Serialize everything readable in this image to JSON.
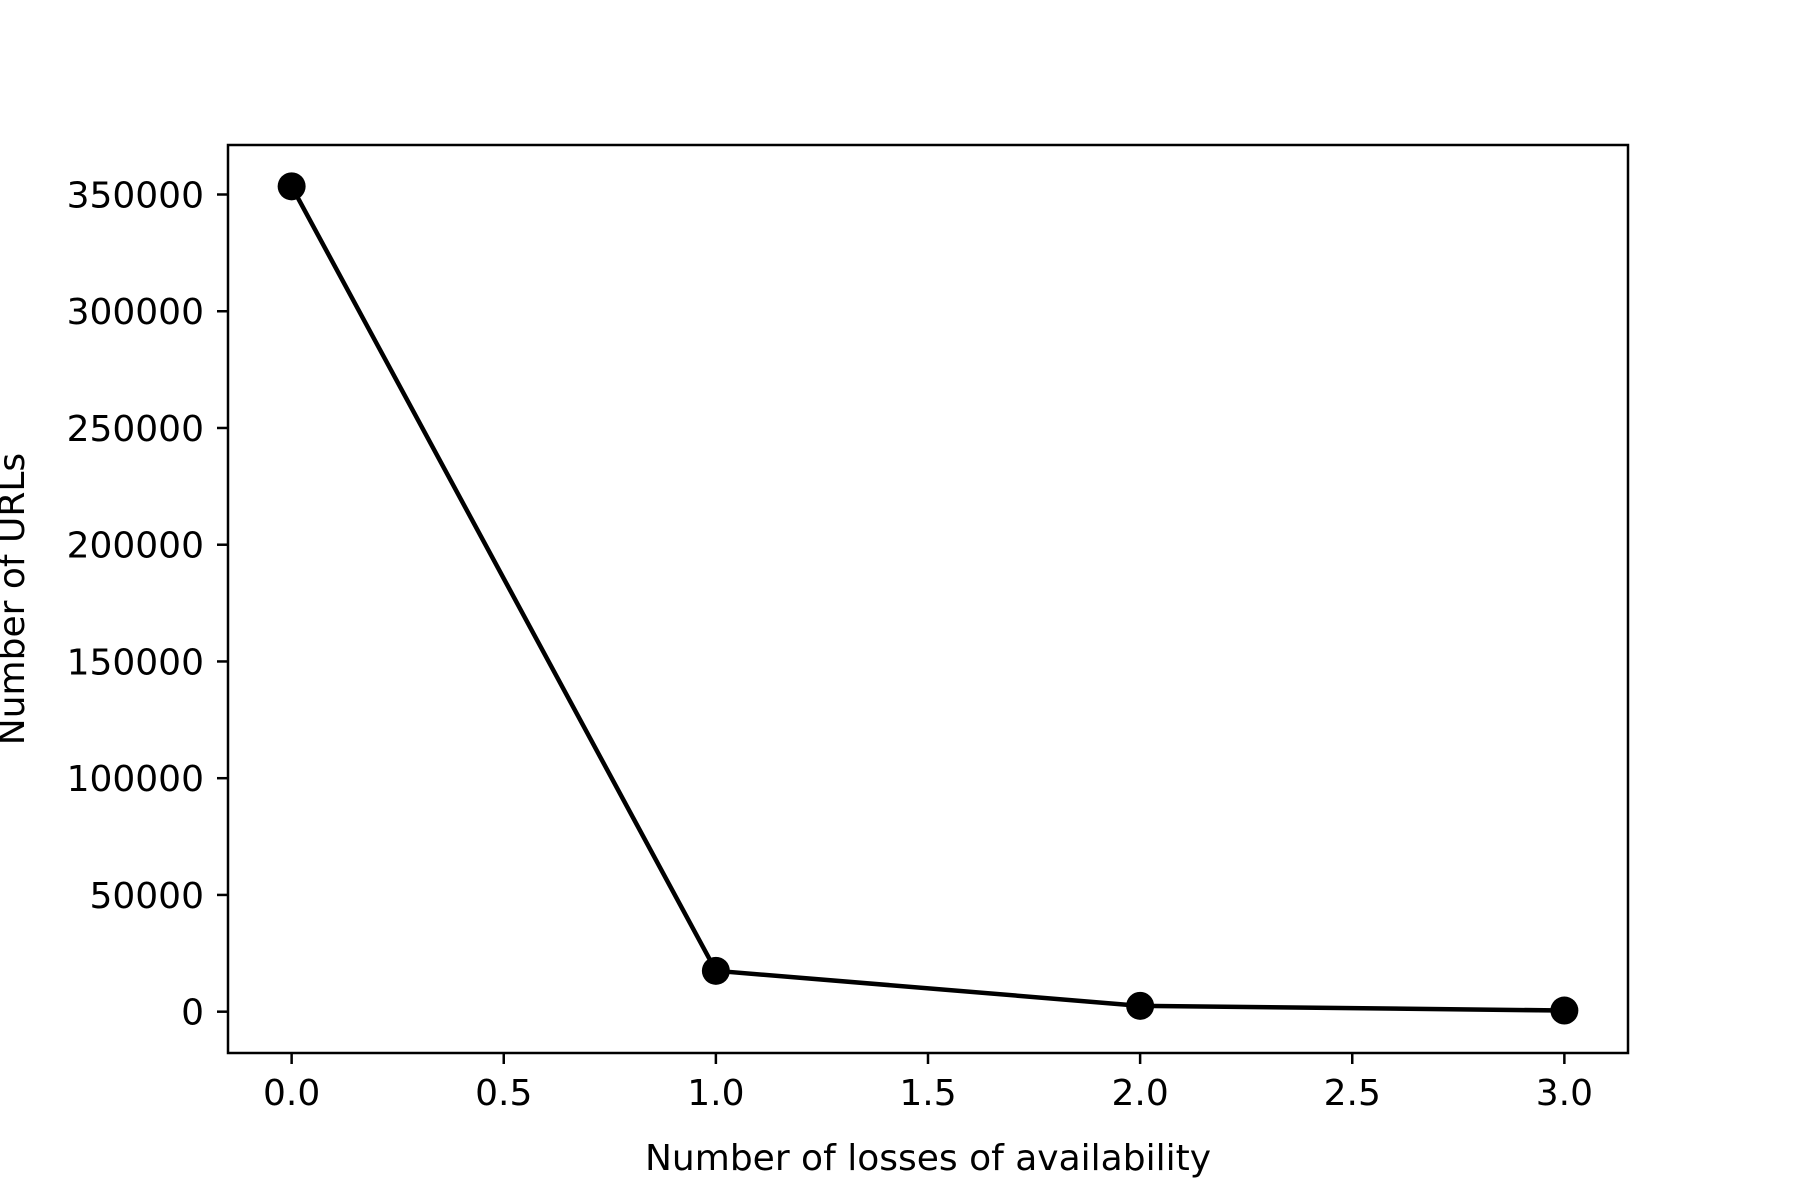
{
  "chart_data": {
    "type": "line",
    "title": "",
    "xlabel": "Number of losses of availability",
    "ylabel": "Number of URLs",
    "x": [
      0,
      1,
      2,
      3
    ],
    "series": [
      {
        "values": [
          353500,
          17500,
          2500,
          500
        ]
      }
    ],
    "xlim": [
      -0.15,
      3.15
    ],
    "ylim": [
      -17700,
      371200
    ],
    "xticks": [
      0.0,
      0.5,
      1.0,
      1.5,
      2.0,
      2.5,
      3.0
    ],
    "xtick_labels": [
      "0.0",
      "0.5",
      "1.0",
      "1.5",
      "2.0",
      "2.5",
      "3.0"
    ],
    "yticks": [
      0,
      50000,
      100000,
      150000,
      200000,
      250000,
      300000,
      350000
    ],
    "ytick_labels": [
      "0",
      "50000",
      "100000",
      "150000",
      "200000",
      "250000",
      "300000",
      "350000"
    ],
    "grid": false,
    "line_color": "#000000",
    "marker": "circle"
  }
}
